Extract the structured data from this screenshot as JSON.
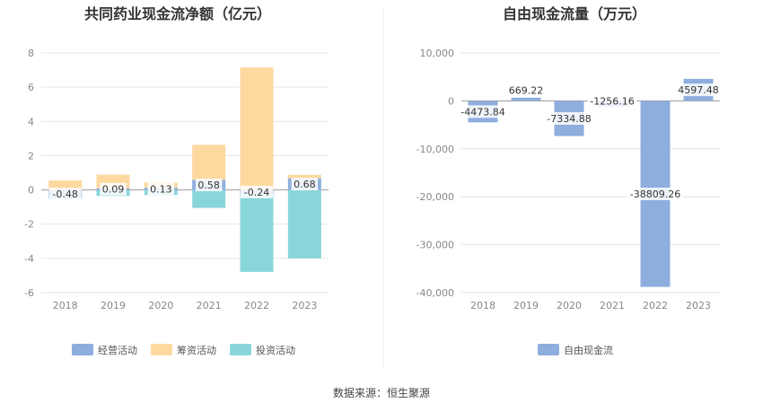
{
  "source": "数据来源：恒生聚源",
  "chart_data": [
    {
      "type": "bar",
      "title": "共同药业现金流净额（亿元）",
      "categories": [
        "2018",
        "2019",
        "2020",
        "2021",
        "2022",
        "2023"
      ],
      "ylim": [
        -6,
        8
      ],
      "yticks": [
        "8",
        "6",
        "4",
        "2",
        "0",
        "-2",
        "-4",
        "-6"
      ],
      "grid": true,
      "legend_position": "bottom",
      "stacked": true,
      "series": [
        {
          "name": "经营活动",
          "color": "#8eaedd",
          "values": [
            -0.48,
            0.09,
            0.13,
            0.58,
            -0.24,
            0.68
          ],
          "labels": [
            "-0.48",
            "0.09",
            "0.13",
            "0.58",
            "-0.24",
            "0.68"
          ]
        },
        {
          "name": "筹资活动",
          "color": "#fdd89f",
          "values": [
            0.55,
            0.8,
            0.3,
            2.05,
            7.15,
            0.2
          ]
        },
        {
          "name": "投资活动",
          "color": "#89d6da",
          "values": [
            -0.05,
            -0.35,
            -0.3,
            -1.05,
            -4.55,
            -4.0
          ]
        }
      ]
    },
    {
      "type": "bar",
      "title": "自由现金流量（万元）",
      "categories": [
        "2018",
        "2019",
        "2020",
        "2021",
        "2022",
        "2023"
      ],
      "ylim": [
        -40000,
        10000
      ],
      "yticks": [
        "10,000",
        "0",
        "-10,000",
        "-20,000",
        "-30,000",
        "-40,000"
      ],
      "grid": true,
      "legend_position": "bottom",
      "series": [
        {
          "name": "自由现金流",
          "color": "#8eaedd",
          "values": [
            -4473.84,
            669.22,
            -7334.88,
            -1256.16,
            -38809.26,
            4597.48
          ],
          "labels": [
            "-4473.84",
            "669.22",
            "-7334.88",
            "-1256.16",
            "-38809.26",
            "4597.48"
          ]
        }
      ]
    }
  ]
}
